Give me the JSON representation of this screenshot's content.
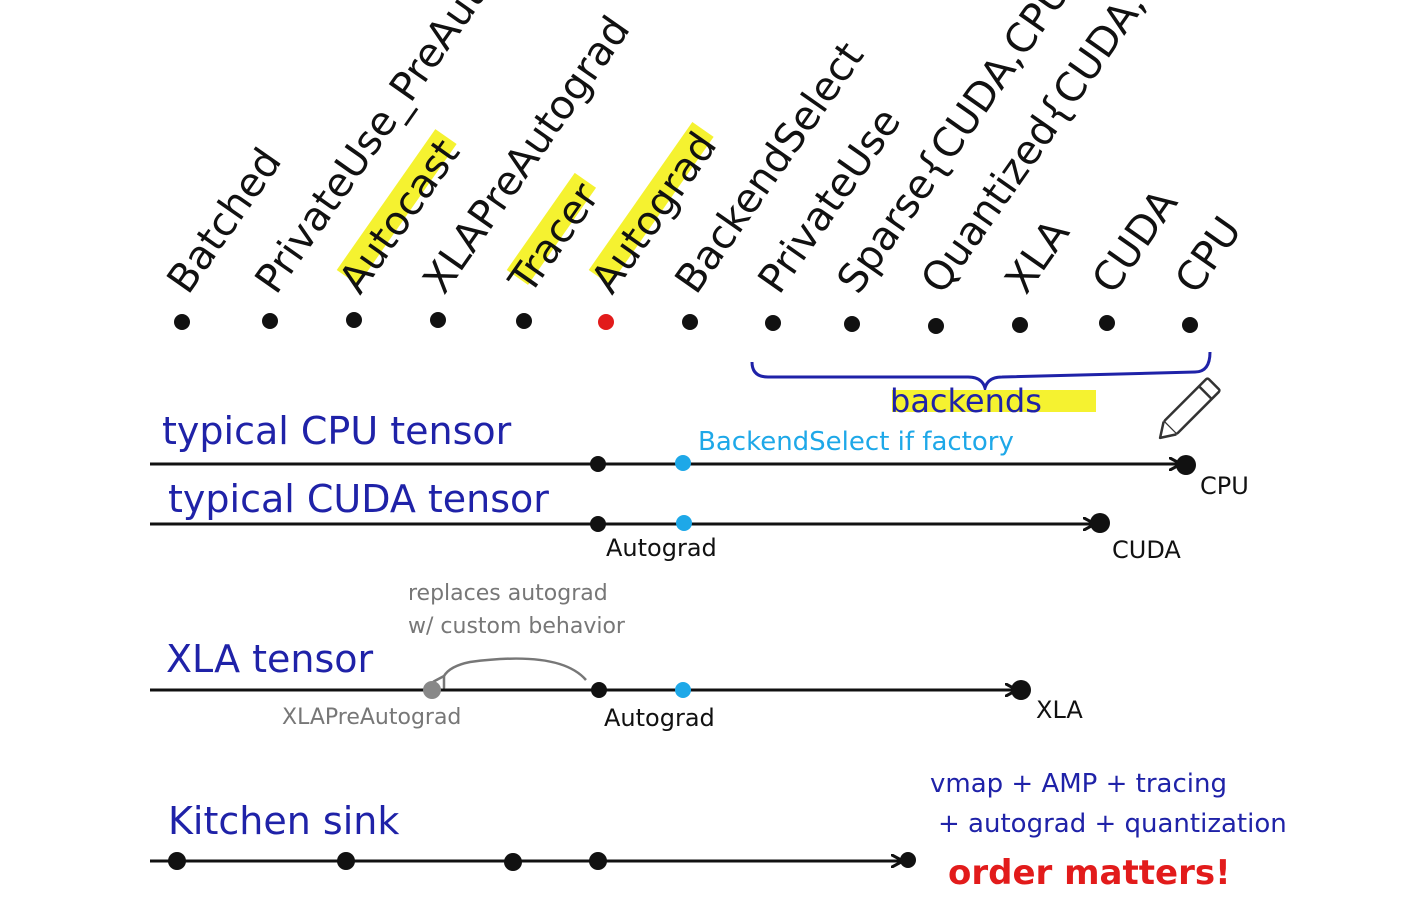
{
  "colors": {
    "ink": "#111111",
    "blue_ink": "#1f22a8",
    "red": "#e21b1b",
    "cyan": "#1ea8e8",
    "grey": "#888888",
    "highlight": "#f5f230"
  },
  "dispatch_keys": [
    {
      "label": "Batched",
      "highlight": false,
      "color": "ink"
    },
    {
      "label": "PrivateUse_PreAutograd",
      "highlight": false,
      "color": "ink"
    },
    {
      "label": "Autocast",
      "highlight": true,
      "color": "ink"
    },
    {
      "label": "XLAPreAutograd",
      "highlight": false,
      "color": "ink"
    },
    {
      "label": "Tracer",
      "highlight": true,
      "color": "ink"
    },
    {
      "label": "Autograd",
      "highlight": true,
      "color": "red"
    },
    {
      "label": "BackendSelect",
      "highlight": false,
      "color": "ink"
    },
    {
      "label": "PrivateUse",
      "highlight": false,
      "color": "ink"
    },
    {
      "label": "Sparse{CUDA,CPU}",
      "highlight": false,
      "color": "ink"
    },
    {
      "label": "Quantized{CUDA,CPU}",
      "highlight": false,
      "color": "ink"
    },
    {
      "label": "XLA",
      "highlight": false,
      "color": "ink"
    },
    {
      "label": "CUDA",
      "highlight": false,
      "color": "ink"
    },
    {
      "label": "CPU",
      "highlight": false,
      "color": "ink"
    }
  ],
  "backends_label": "backends",
  "rows": {
    "cpu": {
      "title": "typical CPU tensor",
      "note": "BackendSelect if factory",
      "end_label": "CPU"
    },
    "cuda": {
      "title": "typical CUDA tensor",
      "autograd_label": "Autograd",
      "end_label": "CUDA"
    },
    "xla": {
      "title": "XLA tensor",
      "note_line1": "replaces autograd",
      "note_line2": "w/ custom behavior",
      "prea_label": "XLAPreAutograd",
      "autograd_label": "Autograd",
      "end_label": "XLA"
    },
    "kitchen": {
      "title": "Kitchen sink",
      "note_line1": "vmap + AMP + tracing",
      "note_line2": "+ autograd + quantization",
      "note_line3": "order matters!"
    }
  }
}
